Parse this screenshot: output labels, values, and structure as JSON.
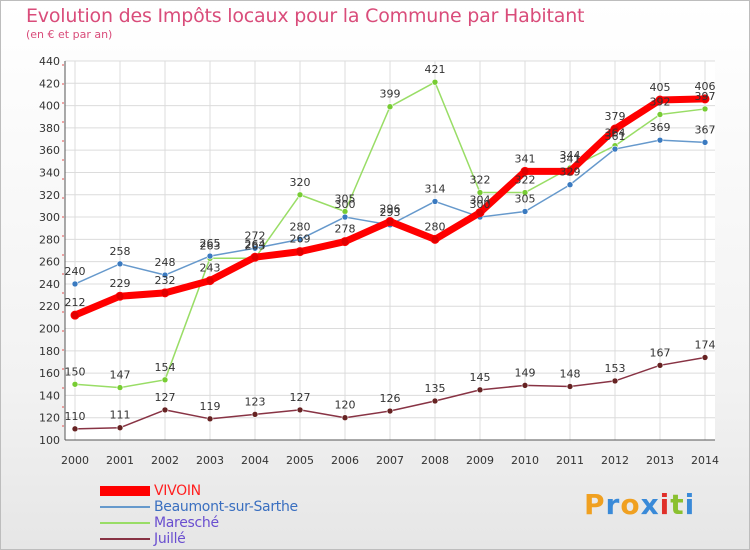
{
  "header": {
    "title": "Evolution des Impôts locaux pour la Commune par Habitant",
    "subtitle": "(en € et par an)"
  },
  "brand": {
    "letters": [
      "P",
      "r",
      "o",
      "x",
      "i",
      "t",
      "i"
    ],
    "colors": [
      "#f0a020",
      "#3a8ad8",
      "#f0a020",
      "#3a8ad8",
      "#e0302a",
      "#8ac030",
      "#3a8ad8"
    ]
  },
  "chart_data": {
    "type": "line",
    "title": "Evolution des Impôts locaux pour la Commune par Habitant",
    "subtitle": "(en € et par an)",
    "xlabel": "",
    "ylabel": "",
    "x": [
      2000,
      2001,
      2002,
      2003,
      2004,
      2005,
      2006,
      2007,
      2008,
      2009,
      2010,
      2011,
      2012,
      2013,
      2014
    ],
    "ylim": [
      100,
      440
    ],
    "yticks": [
      100,
      120,
      140,
      160,
      180,
      200,
      220,
      240,
      260,
      280,
      300,
      320,
      340,
      360,
      380,
      400,
      420,
      440
    ],
    "grid": true,
    "legend_position": "bottom-left",
    "series": [
      {
        "name": "VIVOIN",
        "color": "#ff0000",
        "marker_color": "#e00000",
        "values": [
          212,
          229,
          232,
          243,
          264,
          269,
          278,
          296,
          280,
          304,
          341,
          341,
          379,
          405,
          406
        ]
      },
      {
        "name": "Beaumont-sur-Sarthe",
        "color": "#6699cc",
        "marker_color": "#3a7ac0",
        "values": [
          240,
          258,
          248,
          265,
          272,
          280,
          300,
          293,
          314,
          300,
          305,
          329,
          361,
          369,
          367
        ]
      },
      {
        "name": "Maresché",
        "color": "#99dd66",
        "marker_color": "#77cc33",
        "values": [
          150,
          147,
          154,
          263,
          263,
          320,
          305,
          399,
          421,
          322,
          322,
          344,
          364,
          392,
          397
        ]
      },
      {
        "name": "Juillé",
        "color": "#883344",
        "marker_color": "#662222",
        "values": [
          110,
          111,
          127,
          119,
          123,
          127,
          120,
          126,
          135,
          145,
          149,
          148,
          153,
          167,
          174
        ]
      }
    ]
  }
}
